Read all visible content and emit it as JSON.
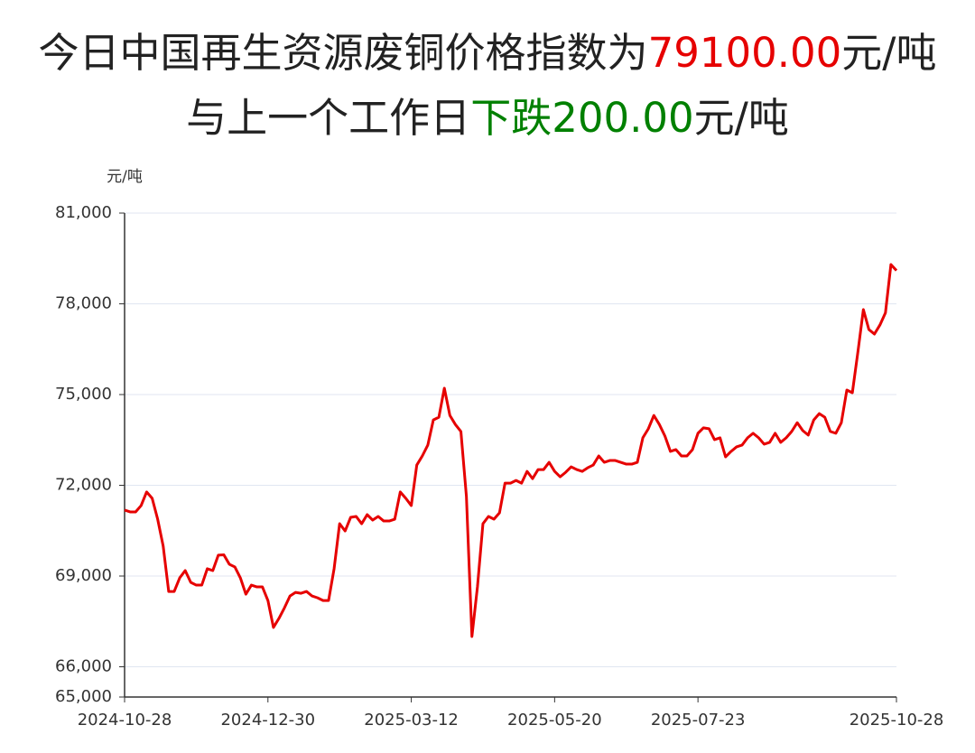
{
  "chart_data": {
    "type": "line",
    "title_lines": [
      [
        {
          "text": "今日中国再生资源废铜价格指数为",
          "color": "#222222"
        },
        {
          "text": "79100.00",
          "color": "#e60000"
        },
        {
          "text": "元/吨",
          "color": "#222222"
        }
      ],
      [
        {
          "text": "与上一个工作日",
          "color": "#222222"
        },
        {
          "text": "下跌200.00",
          "color": "#008000"
        },
        {
          "text": "元/吨",
          "color": "#222222"
        }
      ]
    ],
    "y_axis_label": "元/吨",
    "categories": [
      "2024-10-28",
      null,
      null,
      null,
      null,
      null,
      null,
      null,
      null,
      null,
      null,
      null,
      null,
      null,
      null,
      null,
      null,
      null,
      null,
      null,
      null,
      null,
      null,
      null,
      null,
      null,
      "2024-12-30",
      null,
      null,
      null,
      null,
      null,
      null,
      null,
      null,
      null,
      null,
      null,
      null,
      null,
      null,
      null,
      null,
      null,
      null,
      null,
      null,
      null,
      null,
      null,
      null,
      null,
      "2025-03-12",
      null,
      null,
      null,
      null,
      null,
      null,
      null,
      null,
      null,
      null,
      null,
      null,
      null,
      null,
      null,
      null,
      null,
      null,
      null,
      null,
      null,
      null,
      null,
      null,
      null,
      "2025-05-20",
      null,
      null,
      null,
      null,
      null,
      null,
      null,
      null,
      null,
      null,
      null,
      null,
      null,
      null,
      null,
      null,
      null,
      null,
      null,
      null,
      null,
      null,
      null,
      null,
      null,
      "2025-07-23",
      null,
      null,
      null,
      null,
      null,
      null,
      null,
      null,
      null,
      null,
      null,
      null,
      null,
      null,
      null,
      null,
      null,
      null,
      null,
      null,
      null,
      null,
      null,
      null,
      null,
      null,
      null,
      null,
      null,
      null,
      null,
      null,
      null,
      null,
      null,
      "2025-10-28"
    ],
    "series": [
      {
        "color": "#e60000",
        "values": [
          71180,
          71120,
          71120,
          71330,
          71780,
          71570,
          70880,
          69990,
          68490,
          68490,
          68940,
          69180,
          68790,
          68700,
          68700,
          69240,
          69180,
          69690,
          69700,
          69390,
          69300,
          68940,
          68400,
          68700,
          68640,
          68640,
          68190,
          67300,
          67600,
          67950,
          68340,
          68460,
          68430,
          68490,
          68340,
          68280,
          68190,
          68190,
          69240,
          70730,
          70490,
          70940,
          70970,
          70730,
          71030,
          70850,
          70970,
          70820,
          70820,
          70880,
          71780,
          71570,
          71330,
          72670,
          72970,
          73330,
          74160,
          74250,
          75210,
          74310,
          74010,
          73780,
          71630,
          67000,
          68640,
          70730,
          70970,
          70880,
          71090,
          72070,
          72070,
          72160,
          72070,
          72460,
          72220,
          72520,
          72520,
          72760,
          72460,
          72280,
          72430,
          72610,
          72520,
          72460,
          72580,
          72670,
          72970,
          72760,
          72820,
          72820,
          72760,
          72700,
          72700,
          72760,
          73570,
          73870,
          74310,
          74010,
          73630,
          73120,
          73180,
          72970,
          72970,
          73180,
          73720,
          73900,
          73870,
          73510,
          73570,
          72940,
          73120,
          73270,
          73330,
          73570,
          73720,
          73570,
          73360,
          73420,
          73720,
          73420,
          73570,
          73780,
          74070,
          73810,
          73660,
          74160,
          74370,
          74250,
          73780,
          73720,
          74070,
          75150,
          75060,
          76400,
          77810,
          77150,
          77000,
          77300,
          77700,
          79300,
          79100
        ]
      }
    ],
    "ylim": [
      65000,
      81000
    ],
    "yticks": [
      {
        "value": 65000,
        "label": "65,000"
      },
      {
        "value": 66000,
        "label": "66,000"
      },
      {
        "value": 69000,
        "label": "69,000"
      },
      {
        "value": 72000,
        "label": "72,000"
      },
      {
        "value": 75000,
        "label": "75,000"
      },
      {
        "value": 78000,
        "label": "78,000"
      },
      {
        "value": 81000,
        "label": "81,000"
      }
    ],
    "grid": true
  }
}
